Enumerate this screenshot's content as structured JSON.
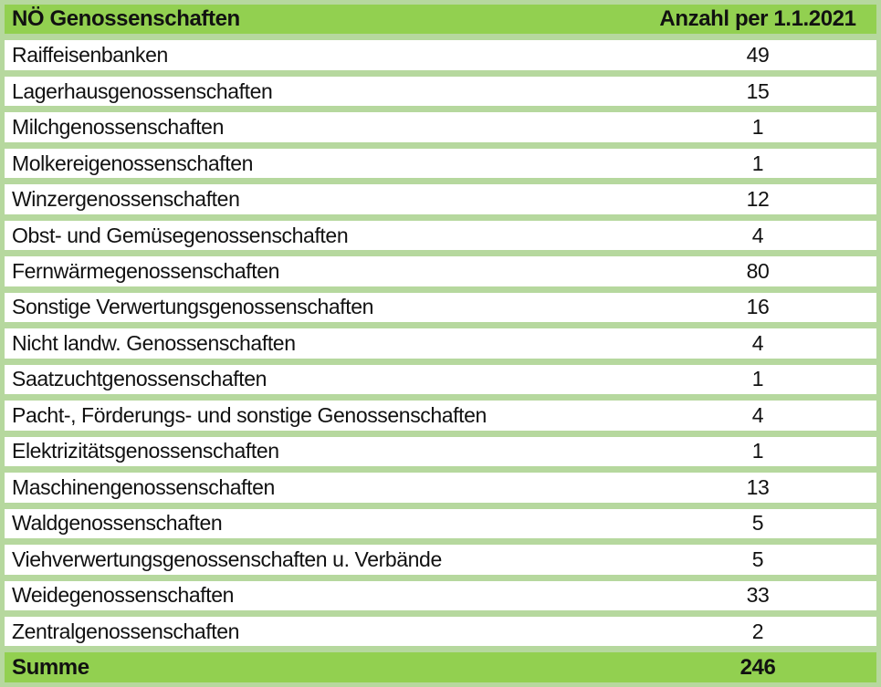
{
  "header": {
    "label": "NÖ Genossenschaften",
    "value_label": "Anzahl per 1.1.2021"
  },
  "rows": [
    {
      "label": "Raiffeisenbanken",
      "value": "49"
    },
    {
      "label": "Lagerhausgenossenschaften",
      "value": "15"
    },
    {
      "label": "Milchgenossenschaften",
      "value": "1"
    },
    {
      "label": "Molkereigenossenschaften",
      "value": "1"
    },
    {
      "label": "Winzergenossenschaften",
      "value": "12"
    },
    {
      "label": "Obst- und Gemüsegenossenschaften",
      "value": "4"
    },
    {
      "label": "Fernwärmegenossenschaften",
      "value": "80"
    },
    {
      "label": "Sonstige Verwertungsgenossenschaften",
      "value": "16"
    },
    {
      "label": "Nicht landw. Genossenschaften",
      "value": "4"
    },
    {
      "label": "Saatzuchtgenossenschaften",
      "value": "1"
    },
    {
      "label": "Pacht-, Förderungs- und sonstige Genossenschaften",
      "value": "4"
    },
    {
      "label": "Elektrizitätsgenossenschaften",
      "value": "1"
    },
    {
      "label": "Maschinengenossenschaften",
      "value": "13"
    },
    {
      "label": "Waldgenossenschaften",
      "value": "5"
    },
    {
      "label": "Viehverwertungsgenossenschaften u. Verbände",
      "value": "5"
    },
    {
      "label": "Weidegenossenschaften",
      "value": "33"
    },
    {
      "label": "Zentralgenossenschaften",
      "value": "2"
    }
  ],
  "footer": {
    "label": "Summe",
    "value": "246"
  },
  "colors": {
    "header_green": "#92D050",
    "separator_green": "#B6D89E",
    "row_background": "#FFFFFF",
    "text": "#111111"
  },
  "chart_data": {
    "type": "table",
    "title": "NÖ Genossenschaften",
    "columns": [
      "NÖ Genossenschaften",
      "Anzahl per 1.1.2021"
    ],
    "categories": [
      "Raiffeisenbanken",
      "Lagerhausgenossenschaften",
      "Milchgenossenschaften",
      "Molkereigenossenschaften",
      "Winzergenossenschaften",
      "Obst- und Gemüsegenossenschaften",
      "Fernwärmegenossenschaften",
      "Sonstige Verwertungsgenossenschaften",
      "Nicht landw. Genossenschaften",
      "Saatzuchtgenossenschaften",
      "Pacht-, Förderungs- und sonstige Genossenschaften",
      "Elektrizitätsgenossenschaften",
      "Maschinengenossenschaften",
      "Waldgenossenschaften",
      "Viehverwertungsgenossenschaften u. Verbände",
      "Weidegenossenschaften",
      "Zentralgenossenschaften"
    ],
    "values": [
      49,
      15,
      1,
      1,
      12,
      4,
      80,
      16,
      4,
      1,
      4,
      1,
      13,
      5,
      5,
      33,
      2
    ],
    "total_label": "Summe",
    "total": 246
  }
}
